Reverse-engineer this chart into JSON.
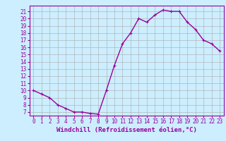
{
  "hours": [
    0,
    1,
    2,
    3,
    4,
    5,
    6,
    7,
    8,
    9,
    10,
    11,
    12,
    13,
    14,
    15,
    16,
    17,
    18,
    19,
    20,
    21,
    22,
    23
  ],
  "values": [
    10,
    9.5,
    9,
    8,
    7.5,
    7,
    7,
    6.8,
    6.7,
    10,
    13.5,
    16.5,
    18,
    20,
    19.5,
    20.5,
    21.2,
    21,
    21,
    19.5,
    18.5,
    17,
    16.5,
    15.5
  ],
  "line_color": "#990099",
  "marker": "+",
  "bg_color": "#cceeff",
  "grid_color": "#aaaaaa",
  "xlabel": "Windchill (Refroidissement éolien,°C)",
  "ylabel_ticks": [
    7,
    8,
    9,
    10,
    11,
    12,
    13,
    14,
    15,
    16,
    17,
    18,
    19,
    20,
    21
  ],
  "ylim": [
    6.5,
    21.8
  ],
  "xlim": [
    -0.5,
    23.5
  ],
  "tick_color": "#990099",
  "tick_fontsize": 5.5,
  "xlabel_fontsize": 6.5,
  "marker_size": 3,
  "line_width": 1.0
}
